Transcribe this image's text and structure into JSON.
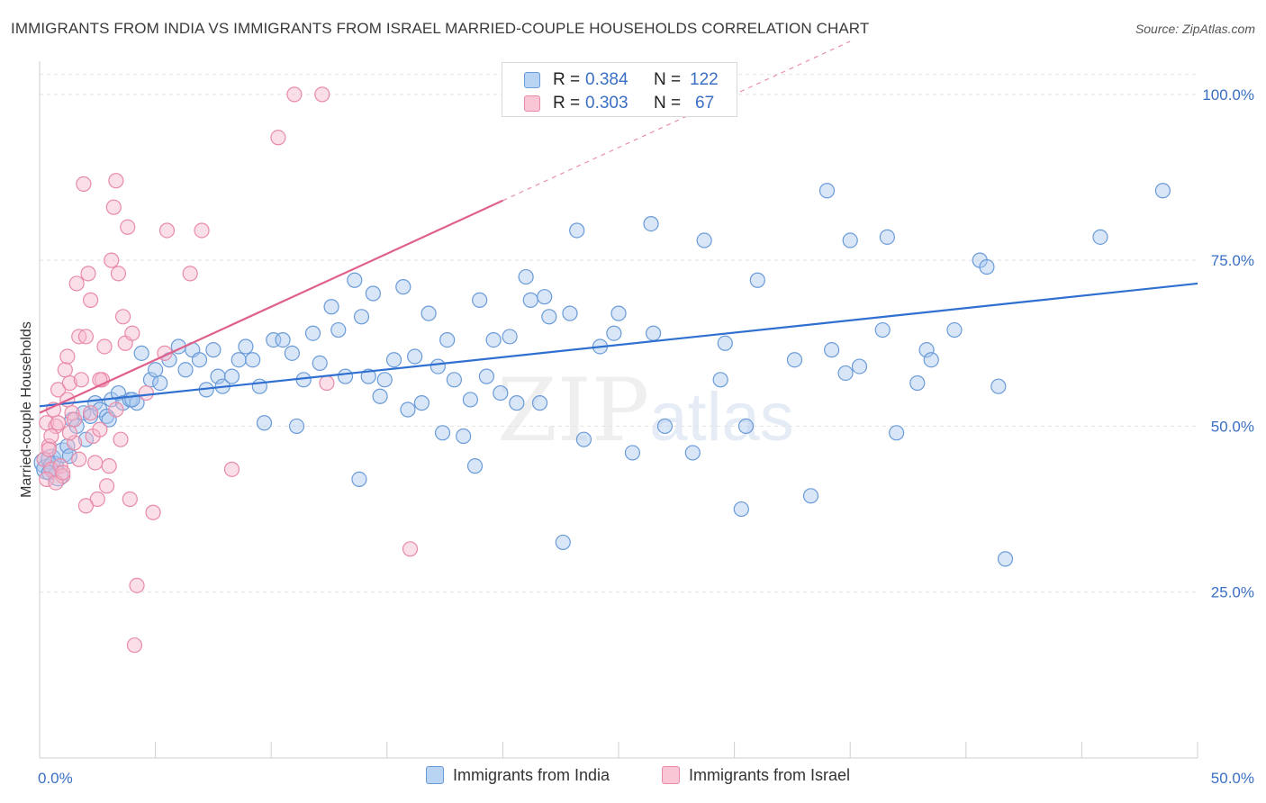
{
  "title": "IMMIGRANTS FROM INDIA VS IMMIGRANTS FROM ISRAEL MARRIED-COUPLE HOUSEHOLDS CORRELATION CHART",
  "source": "Source: ZipAtlas.com",
  "watermark": {
    "zip": "ZIP",
    "atlas": "atlas"
  },
  "legend": {
    "india": {
      "r_label": "R =",
      "r_value": "0.384",
      "n_label": "N =",
      "n_value": "122"
    },
    "israel": {
      "r_label": "R =",
      "r_value": "0.303",
      "n_label": "N =",
      "n_value": "67"
    }
  },
  "bottom_legend": {
    "india": "Immigrants from India",
    "israel": "Immigrants from Israel"
  },
  "colors": {
    "india_fill": "#a8c8f0",
    "india_stroke": "#6a9bd8",
    "india_line": "#2f6fd0",
    "israel_fill": "#f6b8cb",
    "israel_stroke": "#e88aa8",
    "israel_line": "#e0608c",
    "grid": "#e2e2e2",
    "tick_text": "#3a6fc4"
  },
  "chart_data": {
    "type": "scatter",
    "title": "IMMIGRANTS FROM INDIA VS IMMIGRANTS FROM ISRAEL MARRIED-COUPLE HOUSEHOLDS CORRELATION CHART",
    "xlabel": "",
    "ylabel": "Married-couple Households",
    "xlim": [
      0,
      50
    ],
    "ylim": [
      0,
      105
    ],
    "x_tick_labels": [
      "0.0%",
      "50.0%"
    ],
    "y_ticks": [
      25,
      50,
      75,
      100
    ],
    "y_tick_labels": [
      "25.0%",
      "50.0%",
      "75.0%",
      "100.0%"
    ],
    "grid": "horizontal-dashed",
    "legend_position": "top-center",
    "series": [
      {
        "name": "Immigrants from India",
        "trend": {
          "x0": 0,
          "y0": 53.0,
          "x1": 50,
          "y1": 71.5,
          "dashed_from": null
        },
        "points": [
          [
            0.2,
            44.5
          ],
          [
            0.3,
            43.5
          ],
          [
            0.5,
            45
          ],
          [
            0.6,
            44
          ],
          [
            0.8,
            42.5
          ],
          [
            1.0,
            46
          ],
          [
            1.2,
            47
          ],
          [
            1.4,
            51
          ],
          [
            1.6,
            50
          ],
          [
            1.9,
            52
          ],
          [
            2.2,
            51.5
          ],
          [
            2.4,
            53.5
          ],
          [
            2.6,
            52.5
          ],
          [
            2.9,
            51.5
          ],
          [
            3.1,
            54
          ],
          [
            3.4,
            55
          ],
          [
            3.6,
            53.5
          ],
          [
            3.9,
            54
          ],
          [
            4.2,
            53.5
          ],
          [
            4.4,
            61
          ],
          [
            4.8,
            57
          ],
          [
            5.2,
            56.5
          ],
          [
            5.6,
            60
          ],
          [
            6.0,
            62
          ],
          [
            6.3,
            58.5
          ],
          [
            6.6,
            61.5
          ],
          [
            6.9,
            60
          ],
          [
            7.2,
            55.5
          ],
          [
            7.5,
            61.5
          ],
          [
            7.7,
            57.5
          ],
          [
            7.9,
            56
          ],
          [
            8.3,
            57.5
          ],
          [
            8.6,
            60
          ],
          [
            8.9,
            62
          ],
          [
            9.2,
            60
          ],
          [
            9.5,
            56
          ],
          [
            9.7,
            50.5
          ],
          [
            10.1,
            63
          ],
          [
            10.5,
            63
          ],
          [
            10.9,
            61
          ],
          [
            11.1,
            50
          ],
          [
            11.4,
            57
          ],
          [
            11.8,
            64
          ],
          [
            12.1,
            59.5
          ],
          [
            12.6,
            68
          ],
          [
            12.9,
            64.5
          ],
          [
            13.2,
            57.5
          ],
          [
            13.6,
            72
          ],
          [
            13.9,
            66.5
          ],
          [
            14.2,
            57.5
          ],
          [
            14.4,
            70
          ],
          [
            14.7,
            54.5
          ],
          [
            14.9,
            57
          ],
          [
            15.3,
            60
          ],
          [
            15.7,
            71
          ],
          [
            15.9,
            52.5
          ],
          [
            16.2,
            60.5
          ],
          [
            16.5,
            53.5
          ],
          [
            16.8,
            67
          ],
          [
            17.2,
            59
          ],
          [
            17.4,
            49
          ],
          [
            17.6,
            63
          ],
          [
            17.9,
            57
          ],
          [
            18.3,
            48.5
          ],
          [
            18.6,
            54
          ],
          [
            18.8,
            44
          ],
          [
            19.0,
            69
          ],
          [
            19.3,
            57.5
          ],
          [
            19.6,
            63
          ],
          [
            19.9,
            55
          ],
          [
            20.3,
            63.5
          ],
          [
            20.6,
            53.5
          ],
          [
            21.0,
            72.5
          ],
          [
            21.2,
            69
          ],
          [
            21.6,
            53.5
          ],
          [
            21.8,
            69.5
          ],
          [
            22.0,
            66.5
          ],
          [
            22.6,
            32.5
          ],
          [
            22.9,
            67
          ],
          [
            23.2,
            79.5
          ],
          [
            23.5,
            48
          ],
          [
            24.2,
            62
          ],
          [
            24.8,
            64
          ],
          [
            25.0,
            67
          ],
          [
            25.6,
            46
          ],
          [
            26.4,
            80.5
          ],
          [
            26.5,
            64
          ],
          [
            27.0,
            50
          ],
          [
            28.2,
            46
          ],
          [
            28.7,
            78
          ],
          [
            29.4,
            57
          ],
          [
            29.6,
            62.5
          ],
          [
            30.3,
            37.5
          ],
          [
            30.5,
            50
          ],
          [
            31.0,
            72
          ],
          [
            32.6,
            60
          ],
          [
            33.3,
            39.5
          ],
          [
            34.0,
            85.5
          ],
          [
            34.2,
            61.5
          ],
          [
            34.8,
            58
          ],
          [
            35.0,
            78
          ],
          [
            35.4,
            59
          ],
          [
            36.4,
            64.5
          ],
          [
            36.6,
            78.5
          ],
          [
            37.0,
            49
          ],
          [
            37.9,
            56.5
          ],
          [
            38.3,
            61.5
          ],
          [
            38.5,
            60
          ],
          [
            39.5,
            64.5
          ],
          [
            40.6,
            75
          ],
          [
            40.9,
            74
          ],
          [
            41.4,
            56
          ],
          [
            41.7,
            30
          ],
          [
            13.8,
            42
          ],
          [
            45.8,
            78.5
          ],
          [
            48.5,
            85.5
          ],
          [
            0.4,
            43
          ],
          [
            1.3,
            45.5
          ],
          [
            2.0,
            48
          ],
          [
            3.0,
            51
          ],
          [
            4.0,
            54
          ],
          [
            5.0,
            58.5
          ]
        ]
      },
      {
        "name": "Immigrants from Israel",
        "trend": {
          "x0": 0,
          "y0": 52.0,
          "x1": 20,
          "y1": 84,
          "dashed_from": 20,
          "dashed_to": [
            35,
            108
          ]
        },
        "points": [
          [
            0.2,
            45
          ],
          [
            0.3,
            50.5
          ],
          [
            0.4,
            47
          ],
          [
            0.5,
            43.5
          ],
          [
            0.6,
            52.5
          ],
          [
            0.7,
            50
          ],
          [
            0.8,
            55.5
          ],
          [
            0.9,
            44
          ],
          [
            1.0,
            42.5
          ],
          [
            1.1,
            58.5
          ],
          [
            1.2,
            60.5
          ],
          [
            1.3,
            56.5
          ],
          [
            1.4,
            52
          ],
          [
            1.5,
            51
          ],
          [
            1.6,
            71.5
          ],
          [
            1.7,
            63.5
          ],
          [
            1.8,
            57
          ],
          [
            1.9,
            86.5
          ],
          [
            2.0,
            63.5
          ],
          [
            2.1,
            73
          ],
          [
            2.2,
            69
          ],
          [
            2.3,
            48.5
          ],
          [
            2.4,
            44.5
          ],
          [
            2.5,
            39
          ],
          [
            2.6,
            49.5
          ],
          [
            2.7,
            57
          ],
          [
            2.8,
            62
          ],
          [
            2.9,
            41
          ],
          [
            3.0,
            44
          ],
          [
            3.1,
            75
          ],
          [
            3.2,
            83
          ],
          [
            3.3,
            87
          ],
          [
            3.4,
            73
          ],
          [
            3.5,
            48
          ],
          [
            3.6,
            66.5
          ],
          [
            3.7,
            62.5
          ],
          [
            3.8,
            80
          ],
          [
            3.9,
            39
          ],
          [
            4.0,
            64
          ],
          [
            4.1,
            17
          ],
          [
            4.2,
            26
          ],
          [
            4.6,
            55
          ],
          [
            4.9,
            37
          ],
          [
            5.4,
            61
          ],
          [
            5.5,
            79.5
          ],
          [
            6.5,
            73
          ],
          [
            7.0,
            79.5
          ],
          [
            8.3,
            43.5
          ],
          [
            10.3,
            93.5
          ],
          [
            11.0,
            100
          ],
          [
            12.2,
            100
          ],
          [
            12.4,
            56.5
          ],
          [
            16.0,
            31.5
          ],
          [
            0.3,
            42
          ],
          [
            0.5,
            48.5
          ],
          [
            0.8,
            50.5
          ],
          [
            1.2,
            54
          ],
          [
            1.5,
            47.5
          ],
          [
            2.0,
            38
          ],
          [
            2.6,
            57
          ],
          [
            0.4,
            46.5
          ],
          [
            0.7,
            41.5
          ],
          [
            1.0,
            43
          ],
          [
            1.3,
            49
          ],
          [
            1.7,
            45
          ],
          [
            2.2,
            52
          ],
          [
            3.3,
            52.5
          ]
        ]
      }
    ]
  }
}
